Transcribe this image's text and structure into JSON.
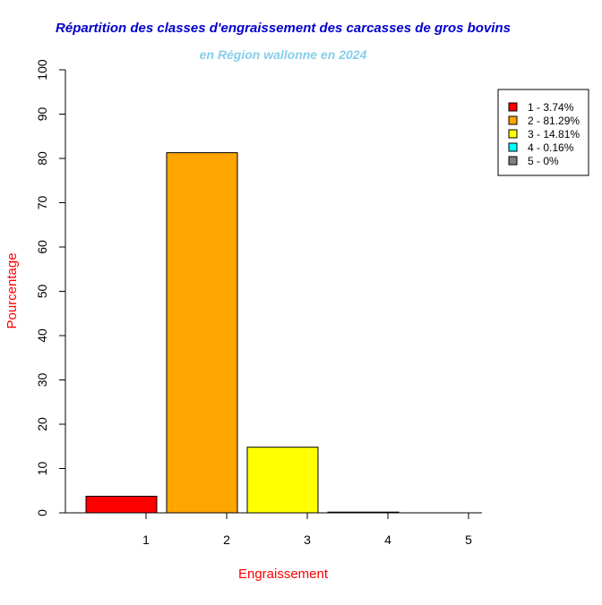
{
  "chart_data": {
    "type": "bar",
    "title": "Répartition des classes d'engraissement des carcasses de gros bovins",
    "subtitle": "en Région wallonne en 2024",
    "xlabel": "Engraissement",
    "ylabel": "Pourcentage",
    "categories": [
      "1",
      "2",
      "3",
      "4",
      "5"
    ],
    "values": [
      3.74,
      81.29,
      14.81,
      0.16,
      0
    ],
    "ylim": [
      0,
      100
    ],
    "yticks": [
      0,
      10,
      20,
      30,
      40,
      50,
      60,
      70,
      80,
      90,
      100
    ],
    "grid": false,
    "legend_position": "top-right",
    "legend": [
      {
        "label": "1 - 3.74%",
        "color": "#ff0000"
      },
      {
        "label": "2 - 81.29%",
        "color": "#ffa500"
      },
      {
        "label": "3 - 14.81%",
        "color": "#ffff00"
      },
      {
        "label": "4 - 0.16%",
        "color": "#00ffff"
      },
      {
        "label": "5 - 0%",
        "color": "#808080"
      }
    ],
    "colors": {
      "title": "#0000cd",
      "subtitle": "#87ceeb",
      "axis_labels": "#ff0000",
      "bars": [
        "#ff0000",
        "#ffa500",
        "#ffff00",
        "#00ffff",
        "#808080"
      ]
    }
  }
}
